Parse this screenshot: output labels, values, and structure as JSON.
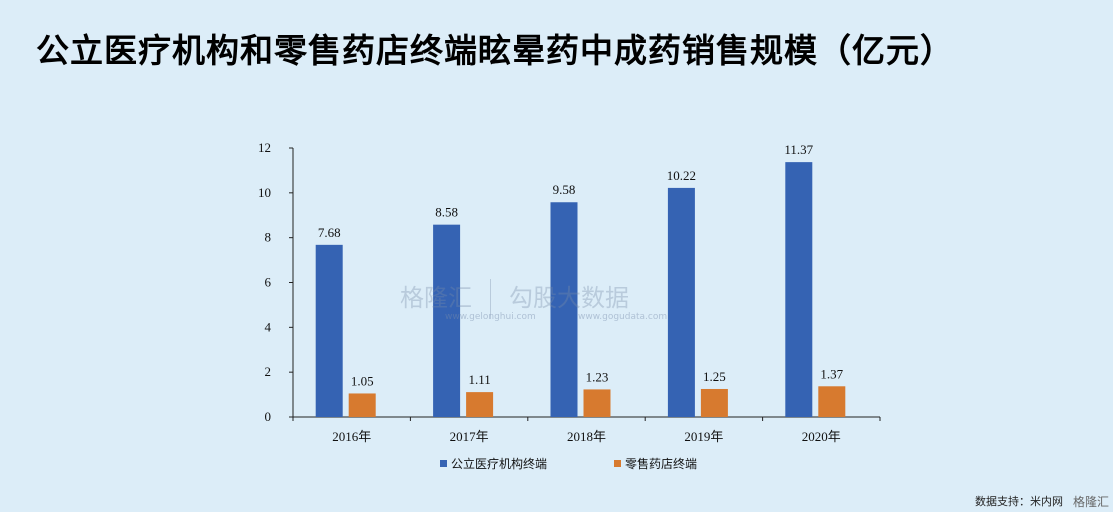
{
  "title": "公立医疗机构和零售药店终端眩晕药中成药销售规模（亿元）",
  "source_text": "数据支持：米内网",
  "brand_text": "格隆汇",
  "watermark": {
    "left_text": "格隆汇",
    "left_sub": "www.gelonghui.com",
    "right_text": "勾股大数据",
    "right_sub": "www.gogudata.com"
  },
  "colors": {
    "public": "#3563b3",
    "retail": "#d77a2f",
    "background": "#dcedf8"
  },
  "chart_data": {
    "type": "bar",
    "categories": [
      "2016年",
      "2017年",
      "2018年",
      "2019年",
      "2020年"
    ],
    "series": [
      {
        "name": "公立医疗机构终端",
        "values": [
          7.68,
          8.58,
          9.58,
          10.22,
          11.37
        ],
        "labels": [
          "7.68",
          "8.58",
          "9.58",
          "10.22",
          "11.37"
        ]
      },
      {
        "name": "零售药店终端",
        "values": [
          1.05,
          1.11,
          1.23,
          1.25,
          1.37
        ],
        "labels": [
          "1.05",
          "1.11",
          "1.23",
          "1.25",
          "1.37"
        ]
      }
    ],
    "ylim": [
      0,
      12
    ],
    "yticks": [
      "0",
      "2",
      "4",
      "6",
      "8",
      "10",
      "12"
    ],
    "grid": false,
    "legend": "bottom-center"
  }
}
